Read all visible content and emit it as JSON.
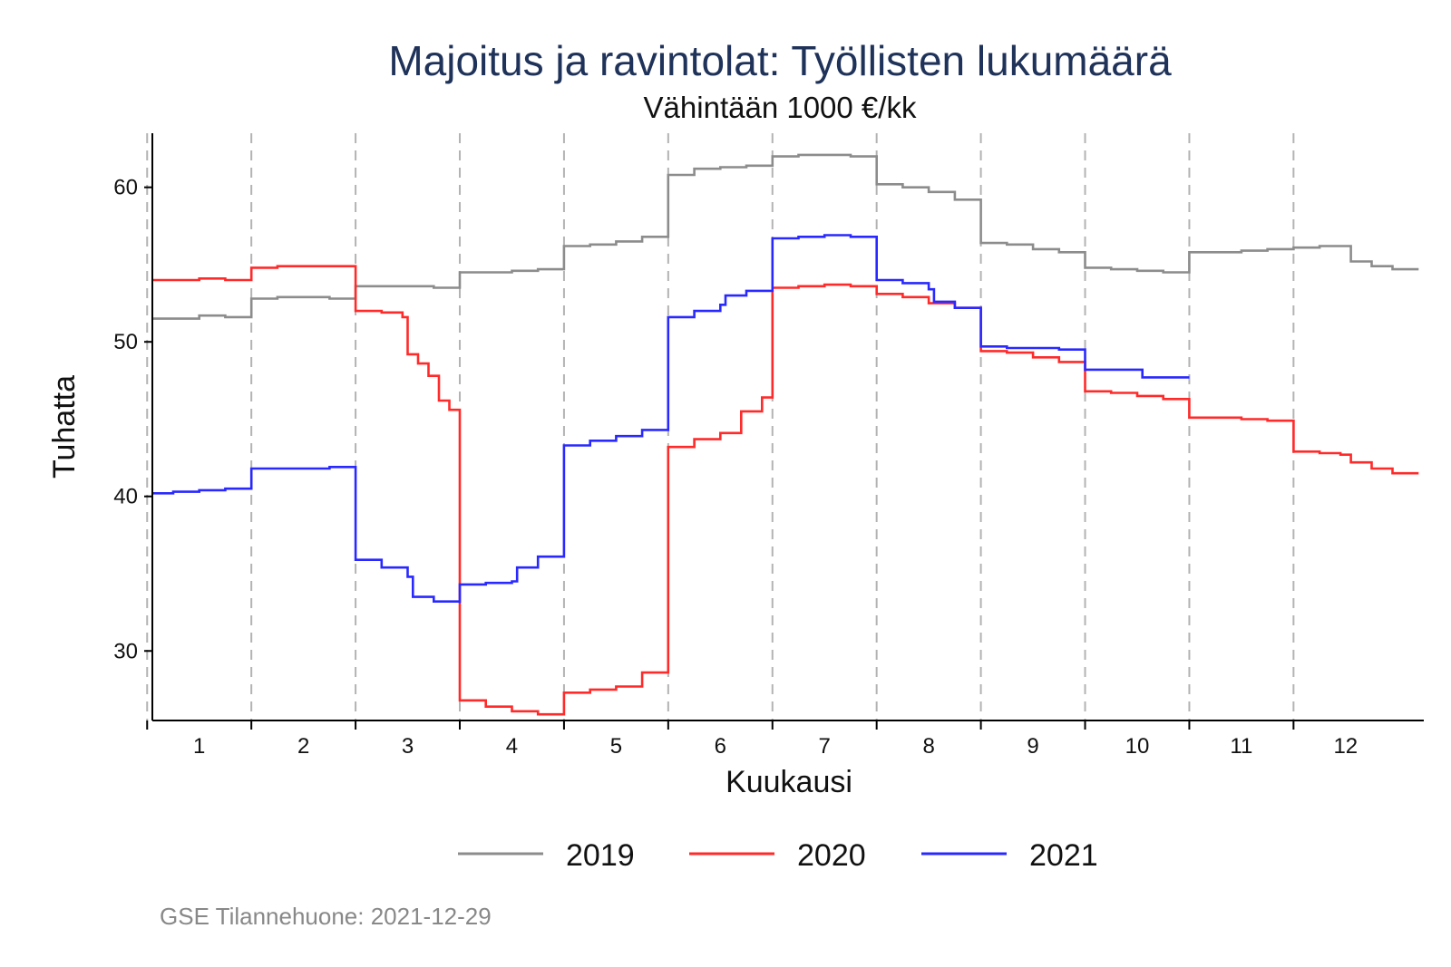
{
  "chart_data": {
    "type": "line",
    "title": "Majoitus ja ravintolat: Työllisten lukumäärä",
    "subtitle": "Vähintään 1000 €/kk",
    "xlabel": "Kuukausi",
    "ylabel": "Tuhatta",
    "xlim": [
      0.55,
      12.75
    ],
    "ylim": [
      25.5,
      63.5
    ],
    "x_ticks": [
      1,
      2,
      3,
      4,
      5,
      6,
      7,
      8,
      9,
      10,
      11,
      12
    ],
    "x_tick_labels": [
      "1",
      "2",
      "3",
      "4",
      "5",
      "6",
      "7",
      "8",
      "9",
      "10",
      "11",
      "12"
    ],
    "y_ticks": [
      30,
      40,
      50,
      60
    ],
    "y_tick_labels": [
      "30",
      "40",
      "50",
      "60"
    ],
    "month_boundaries": [
      0.5,
      1.5,
      2.5,
      3.5,
      4.5,
      5.5,
      6.5,
      7.5,
      8.5,
      9.5,
      10.5,
      11.5
    ],
    "grid": false,
    "legend_position": "bottom",
    "series": [
      {
        "name": "2019",
        "color": "#8c8c8c",
        "points": [
          [
            0.55,
            51.5
          ],
          [
            0.75,
            51.5
          ],
          [
            1.0,
            51.7
          ],
          [
            1.25,
            51.6
          ],
          [
            1.5,
            51.6
          ],
          [
            1.5,
            52.8
          ],
          [
            1.75,
            52.9
          ],
          [
            2.0,
            52.9
          ],
          [
            2.25,
            52.8
          ],
          [
            2.5,
            52.8
          ],
          [
            2.5,
            53.6
          ],
          [
            2.75,
            53.6
          ],
          [
            3.0,
            53.6
          ],
          [
            3.25,
            53.5
          ],
          [
            3.5,
            53.5
          ],
          [
            3.5,
            54.5
          ],
          [
            3.75,
            54.5
          ],
          [
            4.0,
            54.6
          ],
          [
            4.25,
            54.7
          ],
          [
            4.5,
            54.8
          ],
          [
            4.5,
            56.2
          ],
          [
            4.75,
            56.3
          ],
          [
            5.0,
            56.5
          ],
          [
            5.25,
            56.8
          ],
          [
            5.5,
            57.0
          ],
          [
            5.5,
            60.8
          ],
          [
            5.75,
            61.2
          ],
          [
            6.0,
            61.3
          ],
          [
            6.25,
            61.4
          ],
          [
            6.5,
            61.6
          ],
          [
            6.5,
            62.0
          ],
          [
            6.75,
            62.1
          ],
          [
            7.0,
            62.1
          ],
          [
            7.25,
            62.0
          ],
          [
            7.5,
            61.8
          ],
          [
            7.5,
            60.2
          ],
          [
            7.75,
            60.0
          ],
          [
            8.0,
            59.7
          ],
          [
            8.25,
            59.2
          ],
          [
            8.5,
            58.6
          ],
          [
            8.5,
            56.4
          ],
          [
            8.75,
            56.3
          ],
          [
            9.0,
            56.0
          ],
          [
            9.25,
            55.8
          ],
          [
            9.5,
            55.5
          ],
          [
            9.5,
            54.8
          ],
          [
            9.75,
            54.7
          ],
          [
            10.0,
            54.6
          ],
          [
            10.25,
            54.5
          ],
          [
            10.5,
            54.5
          ],
          [
            10.5,
            55.8
          ],
          [
            10.75,
            55.8
          ],
          [
            11.0,
            55.9
          ],
          [
            11.25,
            56.0
          ],
          [
            11.5,
            56.1
          ],
          [
            11.5,
            56.1
          ],
          [
            11.75,
            56.2
          ],
          [
            11.95,
            56.2
          ],
          [
            12.05,
            55.2
          ],
          [
            12.25,
            54.9
          ],
          [
            12.45,
            54.7
          ],
          [
            12.7,
            54.7
          ]
        ]
      },
      {
        "name": "2020",
        "color": "#ff2a2a",
        "points": [
          [
            0.55,
            54.0
          ],
          [
            0.75,
            54.0
          ],
          [
            1.0,
            54.1
          ],
          [
            1.25,
            54.0
          ],
          [
            1.5,
            54.0
          ],
          [
            1.5,
            54.8
          ],
          [
            1.75,
            54.9
          ],
          [
            2.0,
            54.9
          ],
          [
            2.25,
            54.9
          ],
          [
            2.5,
            54.9
          ],
          [
            2.5,
            52.0
          ],
          [
            2.75,
            51.9
          ],
          [
            2.95,
            51.6
          ],
          [
            3.0,
            49.2
          ],
          [
            3.1,
            48.6
          ],
          [
            3.2,
            47.8
          ],
          [
            3.3,
            46.2
          ],
          [
            3.4,
            45.6
          ],
          [
            3.5,
            45.0
          ],
          [
            3.5,
            26.8
          ],
          [
            3.75,
            26.4
          ],
          [
            4.0,
            26.1
          ],
          [
            4.25,
            25.9
          ],
          [
            4.5,
            25.9
          ],
          [
            4.5,
            27.3
          ],
          [
            4.75,
            27.5
          ],
          [
            5.0,
            27.7
          ],
          [
            5.25,
            28.6
          ],
          [
            5.5,
            29.3
          ],
          [
            5.5,
            43.2
          ],
          [
            5.75,
            43.7
          ],
          [
            6.0,
            44.1
          ],
          [
            6.2,
            45.5
          ],
          [
            6.4,
            46.4
          ],
          [
            6.5,
            46.8
          ],
          [
            6.5,
            53.5
          ],
          [
            6.75,
            53.6
          ],
          [
            7.0,
            53.7
          ],
          [
            7.25,
            53.6
          ],
          [
            7.5,
            53.5
          ],
          [
            7.5,
            53.1
          ],
          [
            7.75,
            52.9
          ],
          [
            8.0,
            52.5
          ],
          [
            8.25,
            52.2
          ],
          [
            8.5,
            51.9
          ],
          [
            8.5,
            49.4
          ],
          [
            8.75,
            49.3
          ],
          [
            9.0,
            49.0
          ],
          [
            9.25,
            48.7
          ],
          [
            9.5,
            48.4
          ],
          [
            9.5,
            46.8
          ],
          [
            9.75,
            46.7
          ],
          [
            10.0,
            46.5
          ],
          [
            10.25,
            46.3
          ],
          [
            10.5,
            46.1
          ],
          [
            10.5,
            45.1
          ],
          [
            10.75,
            45.1
          ],
          [
            11.0,
            45.0
          ],
          [
            11.25,
            44.9
          ],
          [
            11.5,
            44.8
          ],
          [
            11.5,
            42.9
          ],
          [
            11.75,
            42.8
          ],
          [
            11.95,
            42.7
          ],
          [
            12.05,
            42.2
          ],
          [
            12.25,
            41.8
          ],
          [
            12.45,
            41.5
          ],
          [
            12.7,
            41.5
          ]
        ]
      },
      {
        "name": "2021",
        "color": "#2929ff",
        "points": [
          [
            0.55,
            40.2
          ],
          [
            0.75,
            40.3
          ],
          [
            1.0,
            40.4
          ],
          [
            1.25,
            40.5
          ],
          [
            1.5,
            40.5
          ],
          [
            1.5,
            41.8
          ],
          [
            1.75,
            41.8
          ],
          [
            2.0,
            41.8
          ],
          [
            2.25,
            41.9
          ],
          [
            2.5,
            41.6
          ],
          [
            2.5,
            35.9
          ],
          [
            2.75,
            35.4
          ],
          [
            3.0,
            34.8
          ],
          [
            3.05,
            33.5
          ],
          [
            3.25,
            33.2
          ],
          [
            3.5,
            33.1
          ],
          [
            3.5,
            34.3
          ],
          [
            3.75,
            34.4
          ],
          [
            4.0,
            34.5
          ],
          [
            4.05,
            35.4
          ],
          [
            4.25,
            36.1
          ],
          [
            4.5,
            36.7
          ],
          [
            4.5,
            43.3
          ],
          [
            4.75,
            43.6
          ],
          [
            5.0,
            43.9
          ],
          [
            5.25,
            44.3
          ],
          [
            5.5,
            44.7
          ],
          [
            5.5,
            51.6
          ],
          [
            5.75,
            52.0
          ],
          [
            6.0,
            52.4
          ],
          [
            6.05,
            53.0
          ],
          [
            6.25,
            53.3
          ],
          [
            6.5,
            53.6
          ],
          [
            6.5,
            56.7
          ],
          [
            6.75,
            56.8
          ],
          [
            7.0,
            56.9
          ],
          [
            7.25,
            56.8
          ],
          [
            7.5,
            56.5
          ],
          [
            7.5,
            54.0
          ],
          [
            7.75,
            53.8
          ],
          [
            8.0,
            53.4
          ],
          [
            8.05,
            52.6
          ],
          [
            8.25,
            52.2
          ],
          [
            8.5,
            51.8
          ],
          [
            8.5,
            49.7
          ],
          [
            8.75,
            49.6
          ],
          [
            9.0,
            49.6
          ],
          [
            9.25,
            49.5
          ],
          [
            9.5,
            49.3
          ],
          [
            9.5,
            48.2
          ],
          [
            9.75,
            48.2
          ],
          [
            10.0,
            48.2
          ],
          [
            10.05,
            47.7
          ],
          [
            10.25,
            47.7
          ],
          [
            10.5,
            47.7
          ]
        ]
      }
    ]
  },
  "source_note": "GSE Tilannehuone: 2021-12-29"
}
